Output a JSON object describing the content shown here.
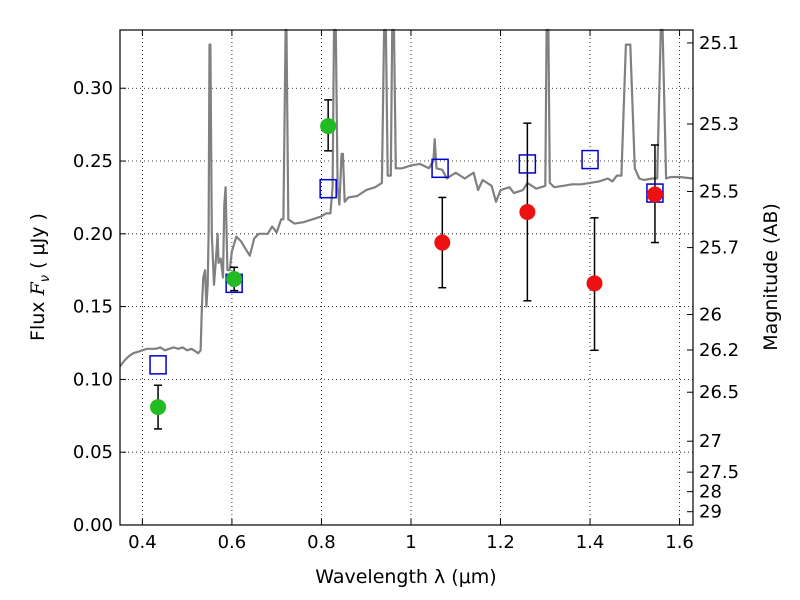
{
  "chart_data": {
    "type": "scatter",
    "title": "",
    "xlabel": "Wavelength  λ (μm)",
    "ylabel": "Flux  F_ν  ( μJy )",
    "ylabel_parts": {
      "prefix": "Flux  ",
      "symbol": "F",
      "subscript": "ν",
      "suffix": "  ( μJy )"
    },
    "y2label": "Magnitude (AB)",
    "xlim": [
      0.35,
      1.63
    ],
    "ylim": [
      0.0,
      0.34
    ],
    "grid": true,
    "grid_style": "dotted",
    "x_ticks": [
      {
        "value": 0.4,
        "label": "0.4"
      },
      {
        "value": 0.6,
        "label": "0.6"
      },
      {
        "value": 0.8,
        "label": "0.8"
      },
      {
        "value": 1.0,
        "label": "1"
      },
      {
        "value": 1.2,
        "label": "1.2"
      },
      {
        "value": 1.4,
        "label": "1.4"
      },
      {
        "value": 1.6,
        "label": "1.6"
      }
    ],
    "y_ticks": [
      {
        "value": 0.0,
        "label": "0.00"
      },
      {
        "value": 0.05,
        "label": "0.05"
      },
      {
        "value": 0.1,
        "label": "0.10"
      },
      {
        "value": 0.15,
        "label": "0.15"
      },
      {
        "value": 0.2,
        "label": "0.20"
      },
      {
        "value": 0.25,
        "label": "0.25"
      },
      {
        "value": 0.3,
        "label": "0.30"
      }
    ],
    "y2_ticks": [
      {
        "value": 25.1,
        "label": "25.1"
      },
      {
        "value": 25.3,
        "label": "25.3"
      },
      {
        "value": 25.5,
        "label": "25.5"
      },
      {
        "value": 25.7,
        "label": "25.7"
      },
      {
        "value": 26.0,
        "label": "26"
      },
      {
        "value": 26.2,
        "label": "26.2"
      },
      {
        "value": 26.5,
        "label": "26.5"
      },
      {
        "value": 27.0,
        "label": "27"
      },
      {
        "value": 27.5,
        "label": "27.5"
      },
      {
        "value": 28.0,
        "label": "28"
      },
      {
        "value": 29.0,
        "label": "29"
      }
    ],
    "series": [
      {
        "kind": "spectrum-line",
        "color": "#808080",
        "points": [
          [
            0.35,
            0.109
          ],
          [
            0.36,
            0.113
          ],
          [
            0.37,
            0.116
          ],
          [
            0.38,
            0.118
          ],
          [
            0.39,
            0.119
          ],
          [
            0.4,
            0.12
          ],
          [
            0.41,
            0.121
          ],
          [
            0.42,
            0.121
          ],
          [
            0.43,
            0.121
          ],
          [
            0.44,
            0.122
          ],
          [
            0.45,
            0.12
          ],
          [
            0.46,
            0.121
          ],
          [
            0.47,
            0.122
          ],
          [
            0.48,
            0.121
          ],
          [
            0.49,
            0.122
          ],
          [
            0.5,
            0.12
          ],
          [
            0.51,
            0.121
          ],
          [
            0.52,
            0.119
          ],
          [
            0.525,
            0.118
          ],
          [
            0.53,
            0.12
          ],
          [
            0.533,
            0.15
          ],
          [
            0.536,
            0.17
          ],
          [
            0.54,
            0.175
          ],
          [
            0.543,
            0.15
          ],
          [
            0.546,
            0.165
          ],
          [
            0.548,
            0.2
          ],
          [
            0.55,
            0.33
          ],
          [
            0.552,
            0.33
          ],
          [
            0.555,
            0.2
          ],
          [
            0.56,
            0.165
          ],
          [
            0.565,
            0.185
          ],
          [
            0.568,
            0.2
          ],
          [
            0.57,
            0.18
          ],
          [
            0.575,
            0.183
          ],
          [
            0.58,
            0.17
          ],
          [
            0.583,
            0.22
          ],
          [
            0.586,
            0.232
          ],
          [
            0.59,
            0.175
          ],
          [
            0.595,
            0.175
          ],
          [
            0.6,
            0.188
          ],
          [
            0.61,
            0.198
          ],
          [
            0.62,
            0.195
          ],
          [
            0.63,
            0.19
          ],
          [
            0.64,
            0.185
          ],
          [
            0.65,
            0.197
          ],
          [
            0.66,
            0.2
          ],
          [
            0.67,
            0.2
          ],
          [
            0.68,
            0.2
          ],
          [
            0.69,
            0.205
          ],
          [
            0.7,
            0.201
          ],
          [
            0.71,
            0.21
          ],
          [
            0.715,
            0.21
          ],
          [
            0.72,
            0.34
          ],
          [
            0.722,
            0.34
          ],
          [
            0.726,
            0.21
          ],
          [
            0.74,
            0.207
          ],
          [
            0.76,
            0.208
          ],
          [
            0.78,
            0.21
          ],
          [
            0.8,
            0.212
          ],
          [
            0.81,
            0.214
          ],
          [
            0.82,
            0.214
          ],
          [
            0.825,
            0.232
          ],
          [
            0.828,
            0.34
          ],
          [
            0.832,
            0.34
          ],
          [
            0.836,
            0.232
          ],
          [
            0.84,
            0.22
          ],
          [
            0.845,
            0.255
          ],
          [
            0.848,
            0.255
          ],
          [
            0.852,
            0.222
          ],
          [
            0.86,
            0.225
          ],
          [
            0.88,
            0.226
          ],
          [
            0.9,
            0.23
          ],
          [
            0.92,
            0.232
          ],
          [
            0.935,
            0.235
          ],
          [
            0.94,
            0.34
          ],
          [
            0.944,
            0.34
          ],
          [
            0.948,
            0.24
          ],
          [
            0.955,
            0.24
          ],
          [
            0.958,
            0.34
          ],
          [
            0.962,
            0.34
          ],
          [
            0.966,
            0.245
          ],
          [
            0.98,
            0.245
          ],
          [
            1.0,
            0.247
          ],
          [
            1.02,
            0.248
          ],
          [
            1.04,
            0.245
          ],
          [
            1.05,
            0.25
          ],
          [
            1.053,
            0.265
          ],
          [
            1.057,
            0.245
          ],
          [
            1.07,
            0.244
          ],
          [
            1.08,
            0.238
          ],
          [
            1.1,
            0.242
          ],
          [
            1.12,
            0.238
          ],
          [
            1.14,
            0.242
          ],
          [
            1.15,
            0.23
          ],
          [
            1.16,
            0.237
          ],
          [
            1.18,
            0.233
          ],
          [
            1.19,
            0.222
          ],
          [
            1.2,
            0.23
          ],
          [
            1.22,
            0.232
          ],
          [
            1.23,
            0.228
          ],
          [
            1.25,
            0.23
          ],
          [
            1.26,
            0.235
          ],
          [
            1.28,
            0.231
          ],
          [
            1.3,
            0.233
          ],
          [
            1.303,
            0.34
          ],
          [
            1.307,
            0.34
          ],
          [
            1.31,
            0.235
          ],
          [
            1.32,
            0.232
          ],
          [
            1.34,
            0.233
          ],
          [
            1.36,
            0.234
          ],
          [
            1.38,
            0.234
          ],
          [
            1.4,
            0.235
          ],
          [
            1.42,
            0.236
          ],
          [
            1.44,
            0.238
          ],
          [
            1.45,
            0.236
          ],
          [
            1.46,
            0.24
          ],
          [
            1.47,
            0.24
          ],
          [
            1.48,
            0.33
          ],
          [
            1.49,
            0.33
          ],
          [
            1.5,
            0.245
          ],
          [
            1.51,
            0.238
          ],
          [
            1.52,
            0.237
          ],
          [
            1.54,
            0.238
          ],
          [
            1.55,
            0.238
          ],
          [
            1.558,
            0.34
          ],
          [
            1.562,
            0.34
          ],
          [
            1.57,
            0.238
          ],
          [
            1.58,
            0.239
          ],
          [
            1.6,
            0.239
          ],
          [
            1.63,
            0.238
          ]
        ]
      },
      {
        "kind": "open-squares",
        "color": "#0000cc",
        "points": [
          {
            "x": 0.435,
            "y": 0.11
          },
          {
            "x": 0.605,
            "y": 0.166
          },
          {
            "x": 0.815,
            "y": 0.231
          },
          {
            "x": 1.065,
            "y": 0.245
          },
          {
            "x": 1.26,
            "y": 0.248
          },
          {
            "x": 1.4,
            "y": 0.251
          },
          {
            "x": 1.545,
            "y": 0.228
          }
        ]
      },
      {
        "kind": "filled-circles",
        "color": "#22bb22",
        "points": [
          {
            "x": 0.435,
            "y": 0.081,
            "err_low": 0.066,
            "err_high": 0.096
          },
          {
            "x": 0.605,
            "y": 0.169,
            "err_low": 0.161,
            "err_high": 0.177
          },
          {
            "x": 0.815,
            "y": 0.274,
            "err_low": 0.257,
            "err_high": 0.292
          }
        ]
      },
      {
        "kind": "filled-circles",
        "color": "#ee1111",
        "points": [
          {
            "x": 1.07,
            "y": 0.194,
            "err_low": 0.163,
            "err_high": 0.225
          },
          {
            "x": 1.26,
            "y": 0.215,
            "err_low": 0.154,
            "err_high": 0.276
          },
          {
            "x": 1.41,
            "y": 0.166,
            "err_low": 0.12,
            "err_high": 0.211
          },
          {
            "x": 1.545,
            "y": 0.227,
            "err_low": 0.194,
            "err_high": 0.261
          }
        ]
      }
    ]
  }
}
